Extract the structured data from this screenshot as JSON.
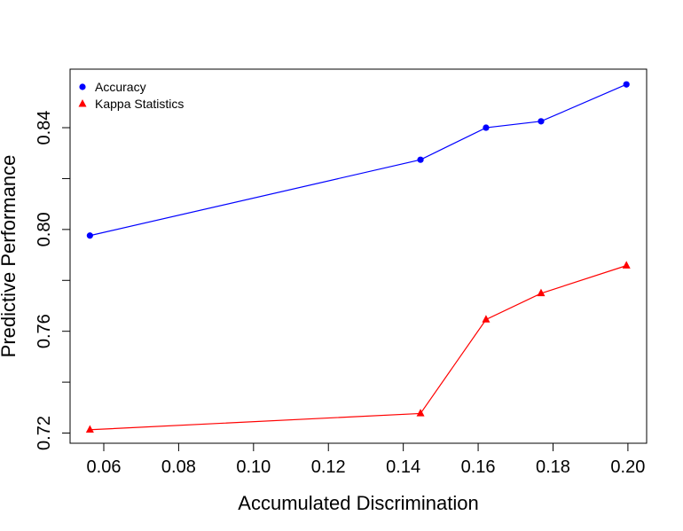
{
  "chart_data": {
    "type": "line",
    "xlabel": "Accumulated Discrimination",
    "ylabel": "Predictive Performance",
    "xlim": [
      0.051,
      0.205
    ],
    "ylim": [
      0.716,
      0.863
    ],
    "xticks": [
      0.06,
      0.08,
      0.1,
      0.12,
      0.14,
      0.16,
      0.18,
      0.2
    ],
    "xtick_labels": [
      "0.06",
      "0.08",
      "0.10",
      "0.12",
      "0.14",
      "0.16",
      "0.18",
      "0.20"
    ],
    "yticks": [
      0.72,
      0.74,
      0.76,
      0.78,
      0.8,
      0.82,
      0.84
    ],
    "ytick_labels": [
      "0.72",
      "",
      "0.76",
      "",
      "0.80",
      "",
      "0.84"
    ],
    "grid": false,
    "legend_position": "top-left",
    "series": [
      {
        "name": "Accuracy",
        "color": "#0000ff",
        "marker": "circle",
        "x": [
          0.0563,
          0.1446,
          0.1621,
          0.1768,
          0.1996
        ],
        "y": [
          0.7976,
          0.8274,
          0.84,
          0.8425,
          0.857
        ]
      },
      {
        "name": "Kappa Statistics",
        "color": "#ff0000",
        "marker": "triangle",
        "x": [
          0.0563,
          0.1446,
          0.1621,
          0.1768,
          0.1996
        ],
        "y": [
          0.7213,
          0.7277,
          0.7646,
          0.7749,
          0.7858
        ]
      }
    ]
  }
}
